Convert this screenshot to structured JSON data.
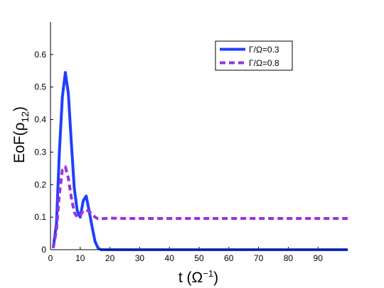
{
  "chart_data": {
    "type": "line",
    "title": "",
    "xlabel": {
      "main": "t (Ω",
      "sup": "−1",
      "tail": ")"
    },
    "ylabel": {
      "main": "EoF(ρ",
      "sub": "12",
      "tail": ")"
    },
    "xlim": [
      0,
      100
    ],
    "ylim": [
      0,
      0.7
    ],
    "xticks": [
      0,
      10,
      20,
      30,
      40,
      50,
      60,
      70,
      80,
      90
    ],
    "xtick_labels": [
      "0",
      "10",
      "20",
      "30",
      "40",
      "50",
      "60",
      "70",
      "80",
      "90"
    ],
    "yticks": [
      0,
      0.1,
      0.2,
      0.3,
      0.4,
      0.5,
      0.6
    ],
    "ytick_labels": [
      "0",
      "0.1",
      "0.2",
      "0.3",
      "0.4",
      "0.5",
      "0.6"
    ],
    "grid": false,
    "legend_position": "top-right",
    "series": [
      {
        "name": "Γ/Ω=0.3",
        "color": "#1f3fff",
        "style": "solid",
        "x": [
          0.9,
          2,
          3,
          4,
          5,
          6,
          7,
          8,
          9,
          10,
          11,
          12,
          13,
          14,
          15,
          16,
          17,
          20,
          30,
          40,
          50,
          60,
          70,
          80,
          90,
          100
        ],
        "y": [
          0.005,
          0.08,
          0.3,
          0.47,
          0.545,
          0.48,
          0.33,
          0.19,
          0.12,
          0.1,
          0.15,
          0.165,
          0.12,
          0.07,
          0.025,
          0.005,
          0.0,
          0.0,
          0.0,
          0.0,
          0.0,
          0.0,
          0.0,
          0.0,
          0.0,
          0.0
        ]
      },
      {
        "name": "Γ/Ω=0.8",
        "color": "#9b30e0",
        "style": "dashed",
        "x": [
          0.9,
          2,
          3,
          4,
          5,
          6,
          7,
          8,
          9,
          10,
          11,
          12,
          13,
          14,
          15,
          16,
          17,
          20,
          25,
          30,
          40,
          50,
          60,
          70,
          80,
          90,
          100
        ],
        "y": [
          0.005,
          0.06,
          0.17,
          0.245,
          0.255,
          0.22,
          0.16,
          0.115,
          0.1,
          0.105,
          0.12,
          0.122,
          0.118,
          0.11,
          0.1,
          0.095,
          0.095,
          0.097,
          0.096,
          0.096,
          0.096,
          0.096,
          0.096,
          0.096,
          0.096,
          0.096,
          0.096
        ]
      }
    ]
  }
}
